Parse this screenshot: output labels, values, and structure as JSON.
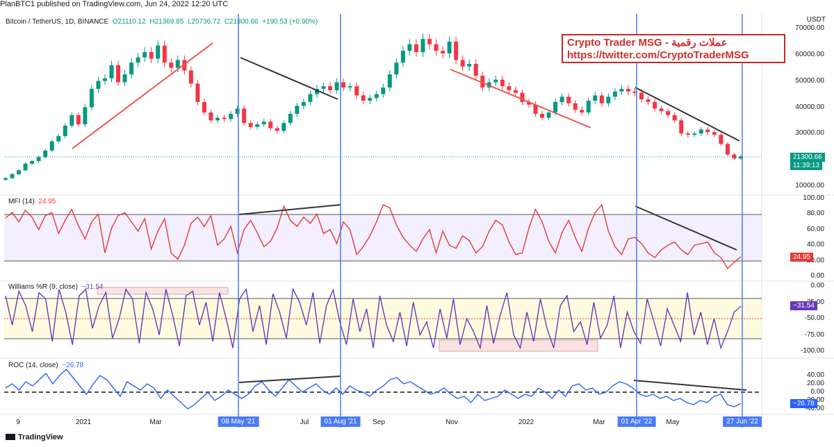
{
  "header": {
    "publisher": "PlanBTC1 published on TradingView.com, Jun 24, 2022 12:20 UTC"
  },
  "overlay": {
    "line1": "Crypto Trader MSG - عملات رقمية",
    "line2": "https://twitter.com/CryptoTraderMSG"
  },
  "footer": {
    "brand": "TradingView"
  },
  "colors": {
    "up": "#089981",
    "down": "#f23645",
    "mfi": "#e53935",
    "williams": "#673ab7",
    "roc": "#2962ff",
    "vline": "#4a7bf7",
    "trend": "#333333",
    "pinktrend": "#ef5350"
  },
  "chart_data": [
    {
      "type": "candlestick",
      "legend": {
        "symbol": "Bitcoin / TetherUS, 1D, BINANCE",
        "open": "O21110.12",
        "high": "H21369.85",
        "low": "L20736.72",
        "close": "C21300.66",
        "change": "+190.53 (+0.90%)"
      },
      "currency": "USDT",
      "ylim": [
        5000,
        72000
      ],
      "yticks": [
        "70000.00",
        "60000.00",
        "50000.00",
        "40000.00",
        "30000.00",
        "20000.00",
        "10000.00"
      ],
      "last_price": "21300.66",
      "countdown": "11:39:13",
      "series": {
        "name": "BTCUSDT close (approx)",
        "values": [
          13000,
          14500,
          16000,
          18500,
          19500,
          21000,
          23500,
          27000,
          29000,
          33000,
          37000,
          33500,
          40000,
          47000,
          50000,
          51000,
          56000,
          49500,
          52500,
          57000,
          59000,
          61000,
          58500,
          63500,
          57000,
          55000,
          58000,
          54000,
          49000,
          42000,
          38000,
          35000,
          36000,
          35500,
          37500,
          39500,
          34000,
          32500,
          33500,
          34500,
          32000,
          31000,
          34000,
          37500,
          40500,
          42000,
          45000,
          47000,
          48000,
          46500,
          49500,
          47500,
          48000,
          44500,
          42500,
          43500,
          45000,
          47500,
          52500,
          57000,
          61500,
          64000,
          61000,
          66000,
          64000,
          61500,
          60500,
          65000,
          58000,
          55500,
          56500,
          52000,
          47500,
          49500,
          50500,
          48000,
          46500,
          45500,
          42000,
          41000,
          37500,
          36000,
          38000,
          42000,
          44000,
          41500,
          39000,
          38000,
          42500,
          44500,
          41500,
          44000,
          46000,
          47000,
          46000,
          45500,
          43000,
          42000,
          39500,
          38500,
          37000,
          35000,
          30000,
          29500,
          30000,
          31500,
          30500,
          29500,
          26000,
          22000,
          20500,
          21300
        ]
      },
      "annotations": [
        "trendline up",
        "trendline down",
        "trendline down",
        "trendline down"
      ]
    },
    {
      "type": "line",
      "legend": {
        "name": "MFI (14)",
        "value": "24.95"
      },
      "ylim": [
        0,
        100
      ],
      "yticks": [
        "100.00",
        "80.00",
        "60.00",
        "40.00",
        "20.00",
        "0.00"
      ],
      "bands": [
        20,
        80
      ],
      "series": {
        "name": "MFI",
        "values": [
          75,
          82,
          70,
          85,
          76,
          60,
          78,
          82,
          55,
          72,
          86,
          65,
          48,
          70,
          80,
          30,
          62,
          78,
          82,
          70,
          58,
          74,
          35,
          58,
          74,
          30,
          22,
          40,
          68,
          76,
          64,
          78,
          40,
          48,
          64,
          30,
          60,
          72,
          56,
          38,
          45,
          62,
          90,
          72,
          64,
          76,
          68,
          80,
          55,
          60,
          42,
          70,
          60,
          28,
          38,
          52,
          70,
          92,
          88,
          66,
          50,
          40,
          32,
          48,
          60,
          30,
          58,
          40,
          36,
          52,
          46,
          30,
          38,
          58,
          72,
          66,
          44,
          28,
          30,
          62,
          86,
          70,
          45,
          30,
          56,
          72,
          50,
          32,
          62,
          82,
          92,
          58,
          38,
          28,
          48,
          50,
          42,
          30,
          24,
          34,
          40,
          44,
          34,
          28,
          40,
          42,
          44,
          30,
          24,
          10,
          18,
          25
        ]
      }
    },
    {
      "type": "line",
      "legend": {
        "name": "Williams %R (9, close)",
        "value": "−31.54"
      },
      "ylim": [
        -100,
        0
      ],
      "yticks": [
        "0.00",
        "-25.00",
        "-50.00",
        "-75.00",
        "-100.00"
      ],
      "bands": [
        -20,
        -80
      ],
      "midline": -50,
      "last_value": "−31.54",
      "series": {
        "name": "%R",
        "values": [
          -15,
          -60,
          -8,
          -30,
          -70,
          -10,
          -20,
          -85,
          -5,
          -40,
          -90,
          -15,
          -5,
          -65,
          -30,
          -10,
          -80,
          -50,
          -5,
          -20,
          -88,
          -10,
          -35,
          -75,
          -5,
          -45,
          -92,
          -15,
          -8,
          -60,
          -25,
          -85,
          -10,
          -50,
          -95,
          -20,
          -5,
          -70,
          -30,
          -90,
          -12,
          -40,
          -80,
          -5,
          -25,
          -60,
          -10,
          -88,
          -30,
          -6,
          -55,
          -90,
          -20,
          -70,
          -35,
          -95,
          -15,
          -60,
          -85,
          -40,
          -92,
          -25,
          -75,
          -55,
          -95,
          -35,
          -80,
          -20,
          -90,
          -50,
          -70,
          -95,
          -30,
          -88,
          -45,
          -10,
          -75,
          -95,
          -40,
          -85,
          -20,
          -65,
          -95,
          -30,
          -15,
          -70,
          -55,
          -90,
          -25,
          -80,
          -60,
          -15,
          -95,
          -40,
          -70,
          -88,
          -20,
          -55,
          -92,
          -35,
          -60,
          -85,
          -10,
          -75,
          -40,
          -90,
          -50,
          -95,
          -70,
          -40,
          -31
        ]
      }
    },
    {
      "type": "line",
      "legend": {
        "name": "ROC (14, close)",
        "value": "−26.78"
      },
      "ylim": [
        -45,
        55
      ],
      "yticks": [
        "40.00",
        "20.00",
        "0.00",
        "-20.00",
        "-40.00"
      ],
      "zero_line": 0,
      "last_value": "−26.78",
      "series": {
        "name": "ROC",
        "values": [
          10,
          20,
          5,
          25,
          15,
          30,
          45,
          20,
          40,
          55,
          35,
          15,
          -5,
          20,
          40,
          30,
          10,
          -10,
          25,
          15,
          5,
          20,
          10,
          -15,
          5,
          -10,
          -25,
          -40,
          -30,
          -15,
          0,
          -20,
          -10,
          5,
          -5,
          -15,
          -5,
          15,
          25,
          5,
          -10,
          10,
          30,
          15,
          0,
          10,
          20,
          5,
          -5,
          10,
          -5,
          15,
          5,
          0,
          -10,
          5,
          15,
          30,
          35,
          20,
          25,
          15,
          5,
          -5,
          0,
          10,
          -5,
          -15,
          -10,
          -25,
          -5,
          -20,
          -15,
          -10,
          5,
          -5,
          -15,
          -5,
          -10,
          10,
          0,
          -15,
          5,
          -10,
          15,
          20,
          5,
          10,
          -5,
          0,
          15,
          25,
          20,
          10,
          -5,
          -10,
          -5,
          -15,
          -10,
          -20,
          -15,
          -25,
          -30,
          -20,
          -25,
          -10,
          -5,
          -30,
          -35,
          -27
        ]
      }
    }
  ],
  "time_axis": {
    "labels": [
      "9",
      "2021",
      "Mar",
      "Jul",
      "Sep",
      "Nov",
      "2022",
      "Mar",
      "May"
    ],
    "badges": [
      "08 May '21",
      "01 Aug '21",
      "01 Apr '22",
      "27 Jun '22"
    ]
  }
}
